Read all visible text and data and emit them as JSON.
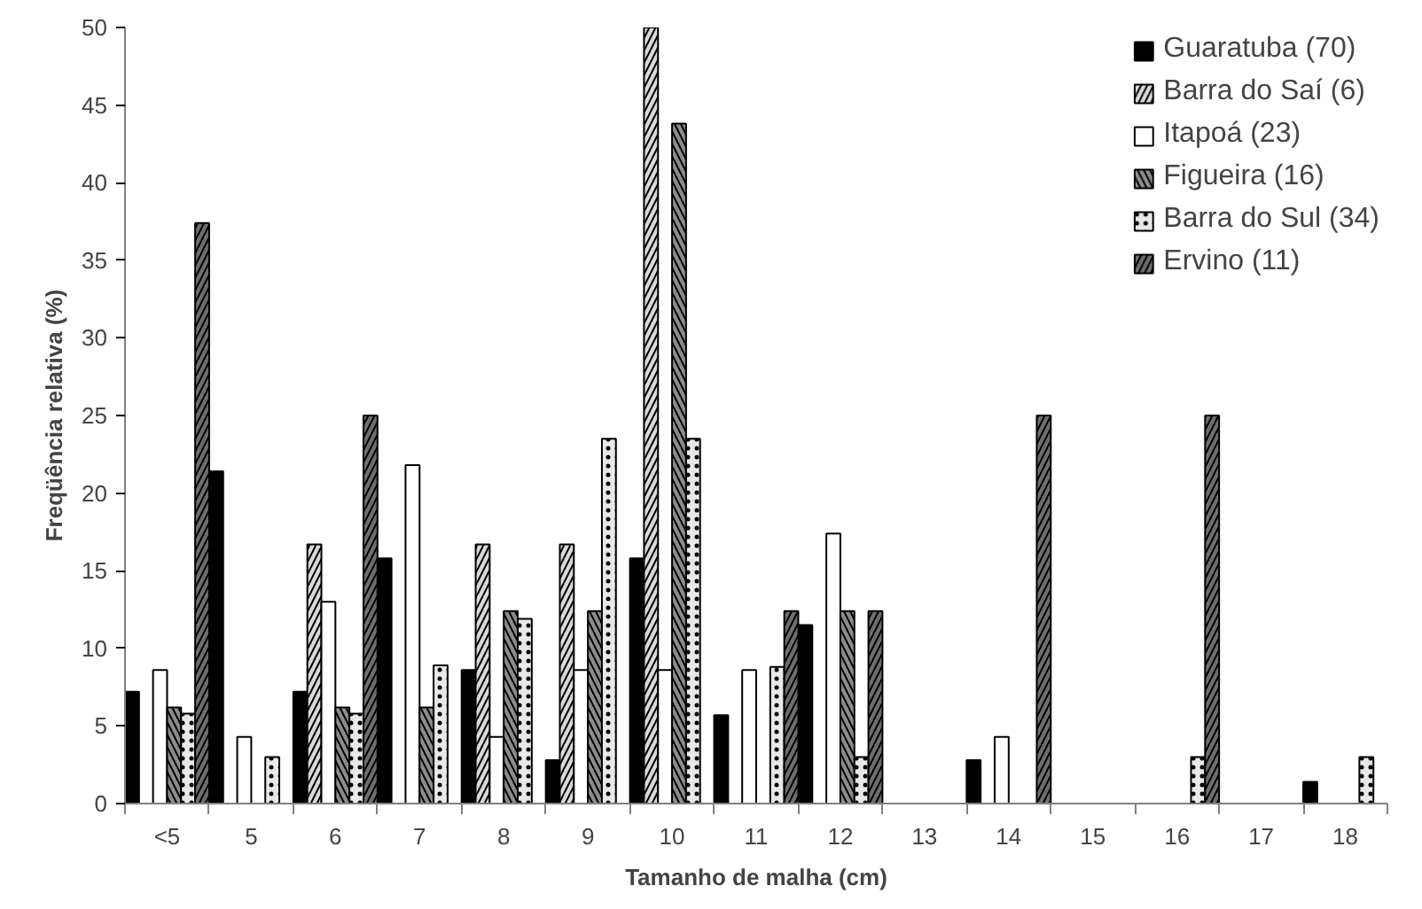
{
  "chart_data": {
    "type": "bar",
    "xlabel": "Tamanho de malha (cm)",
    "ylabel": "Freqüência relativa (%)",
    "categories": [
      "<5",
      "5",
      "6",
      "7",
      "8",
      "9",
      "10",
      "11",
      "12",
      "13",
      "14",
      "15",
      "16",
      "17",
      "18"
    ],
    "series": [
      {
        "name": "Guaratuba (70)",
        "color": "#000000",
        "values": [
          7.2,
          21.4,
          7.2,
          15.8,
          8.6,
          2.8,
          15.8,
          5.7,
          11.5,
          null,
          2.8,
          null,
          null,
          null,
          1.4
        ]
      },
      {
        "name": "Barra do Saí (6)",
        "color": "#d9d9d9",
        "values": [
          null,
          null,
          16.7,
          null,
          16.7,
          16.7,
          50,
          null,
          null,
          null,
          null,
          null,
          null,
          null,
          null
        ]
      },
      {
        "name": "Itapoá (23)",
        "color": "#ffffff",
        "values": [
          8.6,
          4.3,
          13.0,
          21.8,
          4.3,
          8.6,
          8.6,
          8.6,
          17.4,
          null,
          4.3,
          null,
          null,
          null,
          null
        ]
      },
      {
        "name": "Figueira (16)",
        "color": "#8c8c8c",
        "values": [
          6.2,
          null,
          6.2,
          6.2,
          12.4,
          12.4,
          43.8,
          null,
          12.4,
          null,
          null,
          null,
          null,
          null,
          null
        ]
      },
      {
        "name": "Barra do Sul (34)",
        "color": "#e8e8e8",
        "values": [
          5.8,
          3.0,
          5.8,
          8.9,
          11.9,
          23.5,
          23.5,
          8.8,
          3.0,
          null,
          null,
          null,
          3.0,
          null,
          3.0
        ]
      },
      {
        "name": "Ervino (11)",
        "color": "#6e6e6e",
        "values": [
          37.4,
          null,
          25.0,
          null,
          null,
          null,
          null,
          12.4,
          12.4,
          null,
          25.0,
          null,
          25.0,
          null,
          null
        ]
      }
    ],
    "ylim": [
      0,
      50
    ],
    "yticks": [
      0,
      5,
      10,
      15,
      20,
      25,
      30,
      35,
      40,
      45,
      50
    ],
    "grid": false,
    "legend": "top right"
  }
}
